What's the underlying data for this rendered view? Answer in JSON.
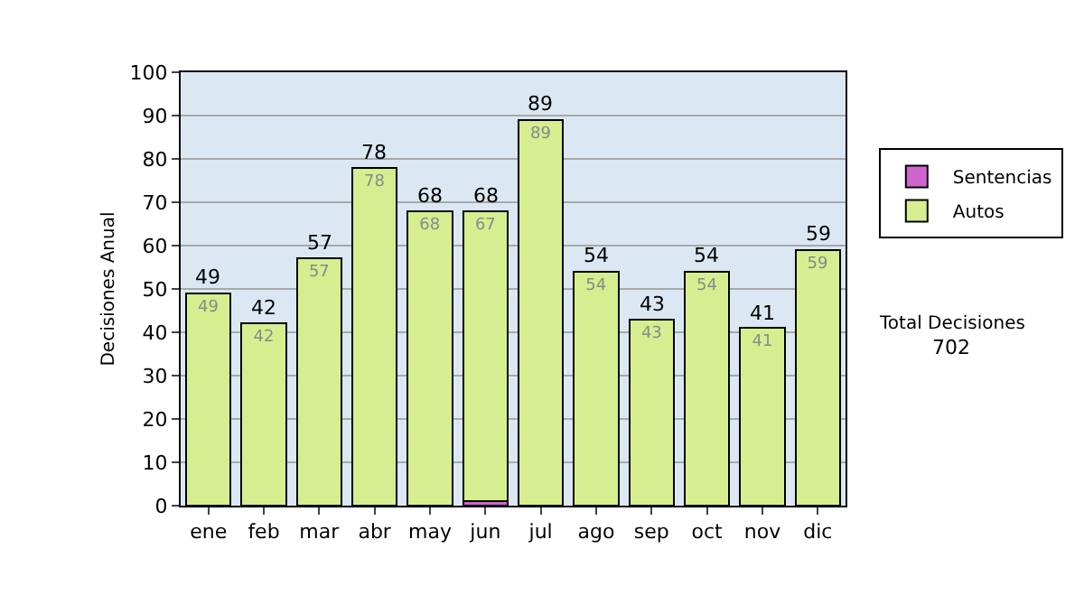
{
  "chart_data": {
    "type": "bar",
    "stacked": true,
    "categories": [
      "ene",
      "feb",
      "mar",
      "abr",
      "may",
      "jun",
      "jul",
      "ago",
      "sep",
      "oct",
      "nov",
      "dic"
    ],
    "ylabel": "Decisiones Anual",
    "series": [
      {
        "name": "Sentencias",
        "color": "#cc66cc",
        "values": [
          0,
          0,
          0,
          0,
          0,
          1,
          0,
          0,
          0,
          0,
          0,
          0
        ],
        "value_labels": [
          null,
          null,
          null,
          null,
          null,
          null,
          null,
          null,
          null,
          null,
          null,
          null
        ]
      },
      {
        "name": "Autos",
        "color": "#d6ee90",
        "values": [
          49,
          42,
          57,
          78,
          68,
          67,
          89,
          54,
          43,
          54,
          41,
          59
        ],
        "value_labels": [
          "49",
          "42",
          "57",
          "78",
          "68",
          "67",
          "89",
          "54",
          "43",
          "54",
          "41",
          "59"
        ]
      }
    ],
    "totals": [
      "49",
      "42",
      "57",
      "78",
      "68",
      "68",
      "89",
      "54",
      "43",
      "54",
      "41",
      "59"
    ],
    "ylim": [
      0,
      100
    ],
    "yticks": [
      0,
      10,
      20,
      30,
      40,
      50,
      60,
      70,
      80,
      90,
      100
    ],
    "grid": "y",
    "legend": "right",
    "annotations": [
      "Total Decisiones",
      "702"
    ]
  }
}
